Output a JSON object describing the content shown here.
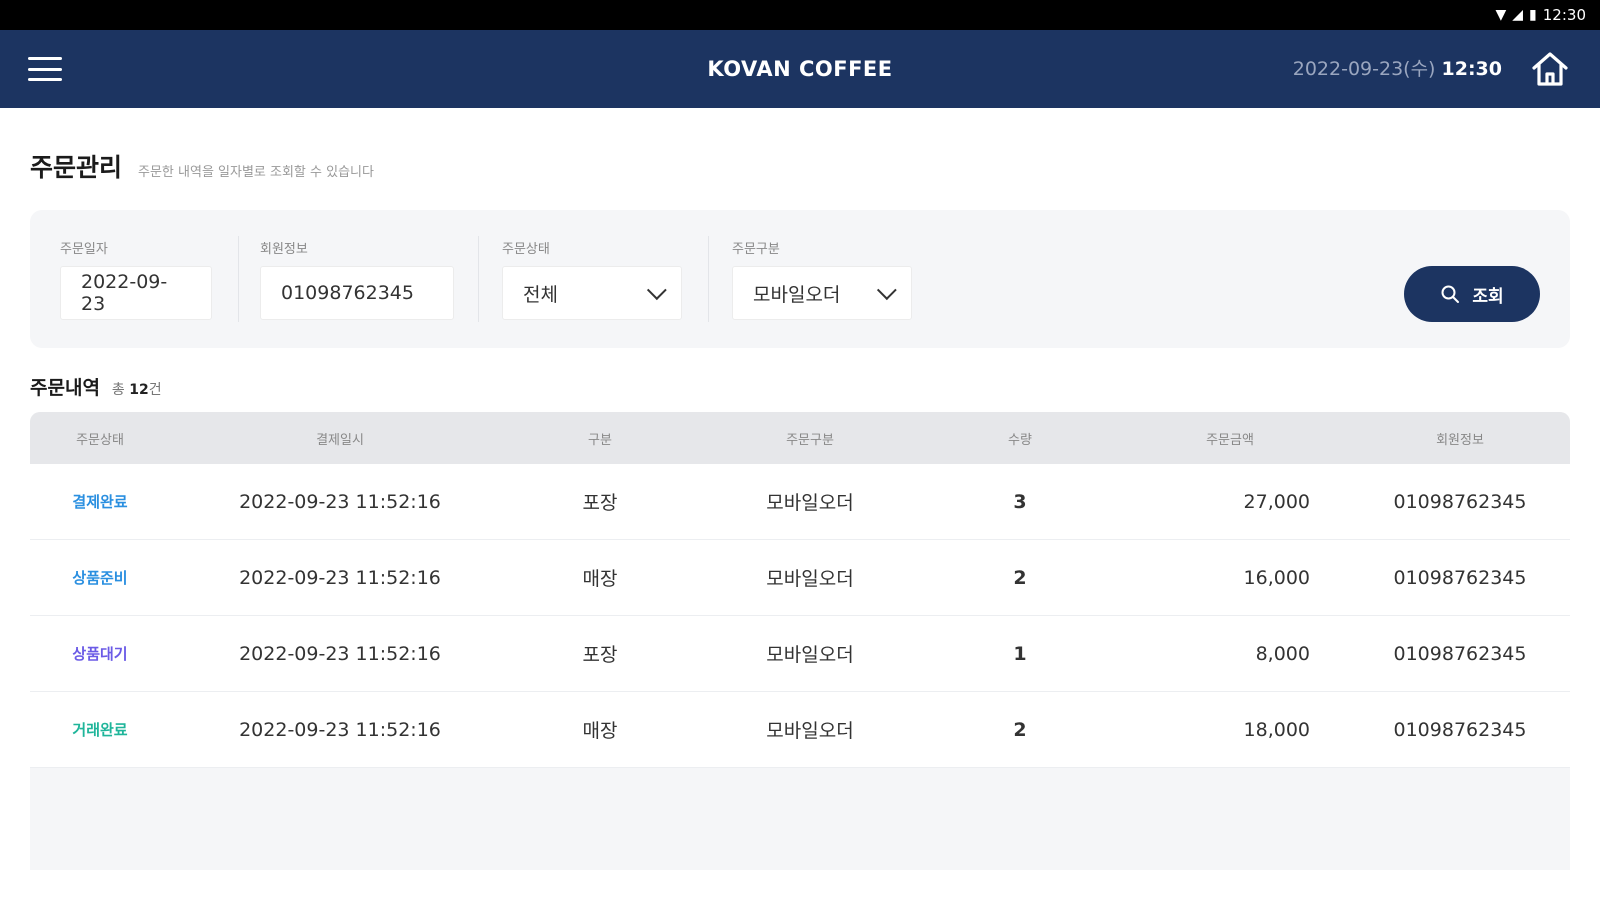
{
  "status_bar": {
    "time": "12:30"
  },
  "header": {
    "brand": "KOVAN COFFEE",
    "date": "2022-09-23(수)",
    "time": "12:30"
  },
  "page": {
    "title": "주문관리",
    "subtitle": "주문한 내역을 일자별로 조회할 수 있습니다"
  },
  "filters": {
    "order_date": {
      "label": "주문일자",
      "value": "2022-09-23"
    },
    "member_info": {
      "label": "회원정보",
      "value": "01098762345"
    },
    "order_status": {
      "label": "주문상태",
      "value": "전체"
    },
    "order_type": {
      "label": "주문구분",
      "value": "모바일오더"
    },
    "search_label": "조회"
  },
  "list": {
    "title": "주문내역",
    "count_prefix": "총",
    "count": "12",
    "count_suffix": "건"
  },
  "table": {
    "columns": [
      "주문상태",
      "결제일시",
      "구분",
      "주문구분",
      "수량",
      "주문금액",
      "회원정보"
    ],
    "rows": [
      {
        "status": "결제완료",
        "status_color": "#2a8fe0",
        "paid_at": "2022-09-23 11:52:16",
        "type": "포장",
        "order_type": "모바일오더",
        "qty": "3",
        "amount": "27,000",
        "member": "01098762345"
      },
      {
        "status": "상품준비",
        "status_color": "#2a8fe0",
        "paid_at": "2022-09-23 11:52:16",
        "type": "매장",
        "order_type": "모바일오더",
        "qty": "2",
        "amount": "16,000",
        "member": "01098762345"
      },
      {
        "status": "상품대기",
        "status_color": "#6b5be6",
        "paid_at": "2022-09-23 11:52:16",
        "type": "포장",
        "order_type": "모바일오더",
        "qty": "1",
        "amount": "8,000",
        "member": "01098762345"
      },
      {
        "status": "거래완료",
        "status_color": "#1fb59a",
        "paid_at": "2022-09-23 11:52:16",
        "type": "매장",
        "order_type": "모바일오더",
        "qty": "2",
        "amount": "18,000",
        "member": "01098762345"
      }
    ]
  },
  "colors": {
    "header_bg": "#1c3461",
    "accent": "#1c3461"
  },
  "icons": {
    "menu": "hamburger-icon",
    "home": "home-icon",
    "search": "search-icon",
    "select": "chevron-down-icon"
  }
}
